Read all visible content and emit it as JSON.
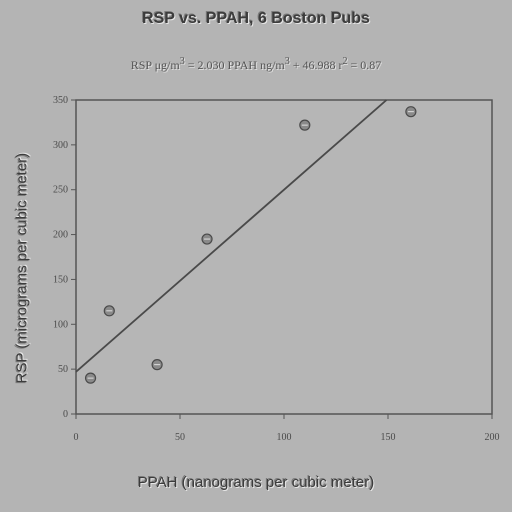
{
  "chart_data": {
    "type": "scatter",
    "title": "RSP vs. PPAH, 6 Boston Pubs",
    "subtitle_text": "RSP μg/m",
    "subtitle_sup1": "3",
    "subtitle_mid": " = 2.030 PPAH ng/m",
    "subtitle_sup2": "3",
    "subtitle_tail": " + 46.988  r",
    "subtitle_sup3": "2",
    "subtitle_end": " = 0.87",
    "xlabel": "PPAH (nanograms per cubic meter)",
    "ylabel": "RSP (micrograms per cubic meter)",
    "xlim": [
      0,
      200
    ],
    "ylim": [
      0,
      350
    ],
    "xticks": [
      0,
      50,
      100,
      150,
      200
    ],
    "yticks": [
      0,
      50,
      100,
      150,
      200,
      250,
      300,
      350
    ],
    "marker": "θ",
    "points": [
      {
        "x": 7,
        "y": 40
      },
      {
        "x": 16,
        "y": 115
      },
      {
        "x": 39,
        "y": 55
      },
      {
        "x": 63,
        "y": 195
      },
      {
        "x": 110,
        "y": 322
      },
      {
        "x": 161,
        "y": 337
      }
    ],
    "fit": {
      "slope": 2.03,
      "intercept": 46.988
    },
    "grid": false,
    "legend": "none"
  }
}
